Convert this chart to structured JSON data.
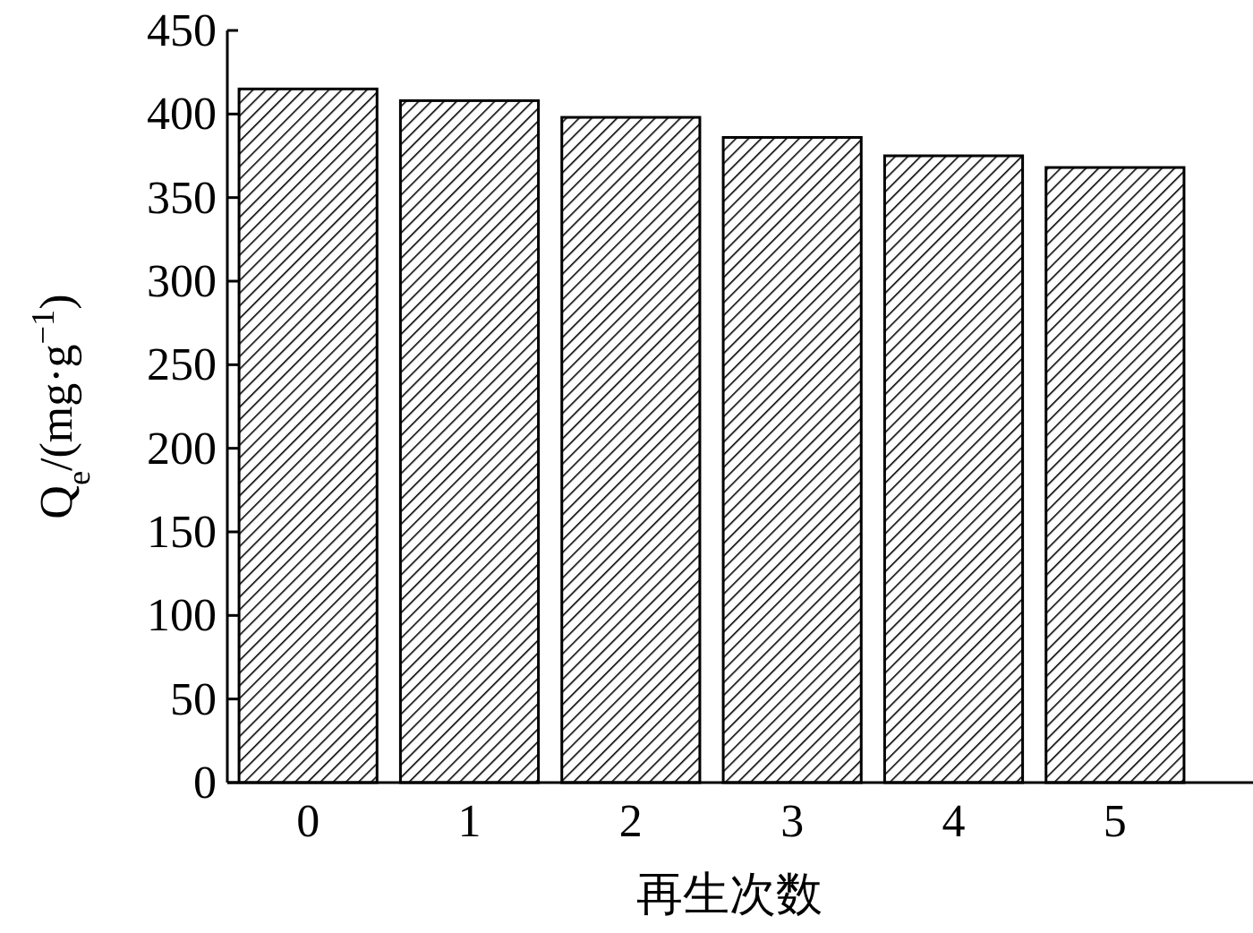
{
  "chart_data": {
    "type": "bar",
    "xlabel": "再生次数",
    "ylabel": "Q$_{e}$/(mg·g$^{−1}$)",
    "categories": [
      "0",
      "1",
      "2",
      "3",
      "4",
      "5"
    ],
    "values": [
      415,
      408,
      398,
      386,
      375,
      368
    ],
    "color": "#000000",
    "ylim": [
      0,
      450
    ],
    "yticks": [
      0,
      50,
      100,
      150,
      200,
      250,
      300,
      350,
      400,
      450
    ]
  }
}
